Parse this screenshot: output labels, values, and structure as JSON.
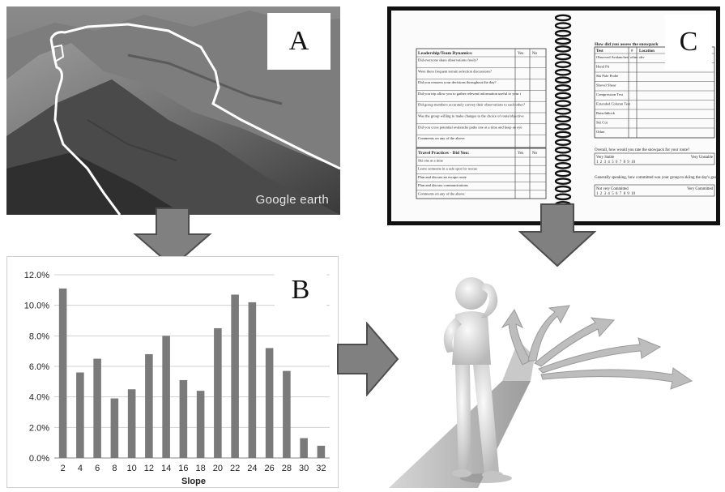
{
  "panels": {
    "a": {
      "label": "A",
      "watermark": "Google earth"
    },
    "b": {
      "label": "B"
    },
    "c": {
      "label": "C"
    }
  },
  "form": {
    "leadership": {
      "header": "Leadership/Team Dynamics:",
      "yes": "Yes",
      "no": "No",
      "rows": [
        "Did everyone share observations freely?",
        "Were there frequent terrain selection discussions?",
        "Did you reassess your decisions throughout the day?",
        "Did you trip allow you to gather relevant information useful to your terrain choices?",
        "Did group members accurately convey their observations to each other?",
        "Was the group willing to make changes to the choice of route/objective?",
        "Did you cross potential avalanche paths one at a time and keep an eye on each other?",
        "Comments on any of the above:"
      ]
    },
    "travel": {
      "header": "Travel Practices - Did You:",
      "yes": "Yes",
      "no": "No",
      "rows": [
        "Ski one at a time",
        "Leave someone in a safe spot for rescue",
        "Plan and discuss an escape route",
        "Plan and discuss communications",
        "Comments on any of the above:"
      ]
    },
    "assess": {
      "header": "How did you assess the snowpack",
      "col_test": "Test",
      "col_num": "#",
      "col_loc": "Location",
      "rows": [
        "Observed Avalanches/ other obvious signs of instability",
        "Hand Pit",
        "Ski Pole Probe",
        "Shovel Shear",
        "Compression Test",
        "Extended Column Test",
        "Rutschblock",
        "Ski Cut",
        "Other"
      ]
    },
    "q1": {
      "text": "Overall, how would you rate the snowpack for your route?",
      "left": "Very Stable",
      "right": "Very Unstable",
      "scale": "1  2  3  4  5  6  7  8  9  10"
    },
    "q2": {
      "text": "Generally speaking, how committed was your group to skiing the day's goal?",
      "left": "Not very Committed",
      "right": "Very Committed",
      "scale": "1  2  3  4  5  6  7  8  9  10"
    }
  },
  "chart_data": {
    "type": "bar",
    "categories": [
      "2",
      "4",
      "6",
      "8",
      "10",
      "12",
      "14",
      "16",
      "18",
      "20",
      "22",
      "24",
      "26",
      "28",
      "30",
      "32"
    ],
    "values": [
      11.1,
      5.6,
      6.5,
      3.9,
      4.5,
      6.8,
      8.0,
      5.1,
      4.4,
      8.5,
      10.7,
      10.2,
      7.2,
      5.7,
      1.3,
      0.8
    ],
    "ylim": [
      0,
      12
    ],
    "yticks": [
      "0.0%",
      "2.0%",
      "4.0%",
      "6.0%",
      "8.0%",
      "10.0%",
      "12.0%"
    ],
    "xlabel": "Slope",
    "ylabel": "",
    "bar_color": "#7a7a7a",
    "grid": true
  },
  "colors": {
    "arrow": "#808080",
    "arrow_stroke": "#4d4d4d"
  },
  "icons": [
    "down-arrow-icon",
    "right-arrow-icon",
    "decision-person-icon"
  ]
}
